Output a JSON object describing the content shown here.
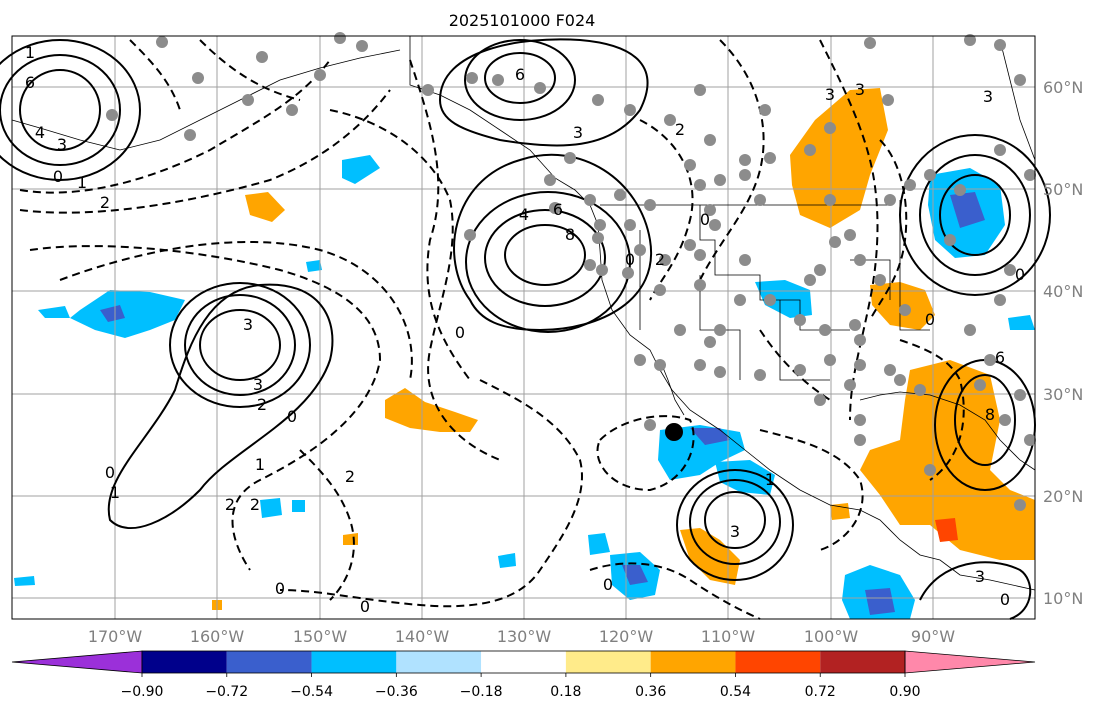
{
  "title": "2025101000 F024",
  "map": {
    "lat_labels": [
      "60°N",
      "50°N",
      "40°N",
      "30°N",
      "20°N",
      "10°N"
    ],
    "lon_labels": [
      "170°W",
      "160°W",
      "150°W",
      "140°W",
      "130°W",
      "120°W",
      "110°W",
      "100°W",
      "90°W"
    ],
    "contour_labels": [
      "6",
      "4",
      "3",
      "0",
      "1",
      "2",
      "1",
      "6",
      "3",
      "3",
      "4",
      "6",
      "8",
      "0",
      "3",
      "2",
      "0",
      "2",
      "1",
      "0",
      "1",
      "2",
      "2",
      "0",
      "3",
      "0",
      "3",
      "0",
      "0",
      "0",
      "1",
      "2",
      "3",
      "3",
      "6",
      "8",
      "3",
      "0",
      "2",
      "0",
      "0"
    ],
    "colors": {
      "ocean": "#ffffff",
      "grid": "#a0a0a0",
      "station": "#8c8c8c"
    }
  },
  "colorbar": {
    "tick_labels": [
      "−0.90",
      "−0.72",
      "−0.54",
      "−0.36",
      "−0.18",
      "0.18",
      "0.36",
      "0.54",
      "0.72",
      "0.90"
    ],
    "colors": [
      "#9b30d9",
      "#00008b",
      "#3a5fcd",
      "#00bfff",
      "#b0e2ff",
      "#ffffff",
      "#ffeb8a",
      "#ffa500",
      "#ff4500",
      "#b22222",
      "#ff88aa"
    ]
  }
}
